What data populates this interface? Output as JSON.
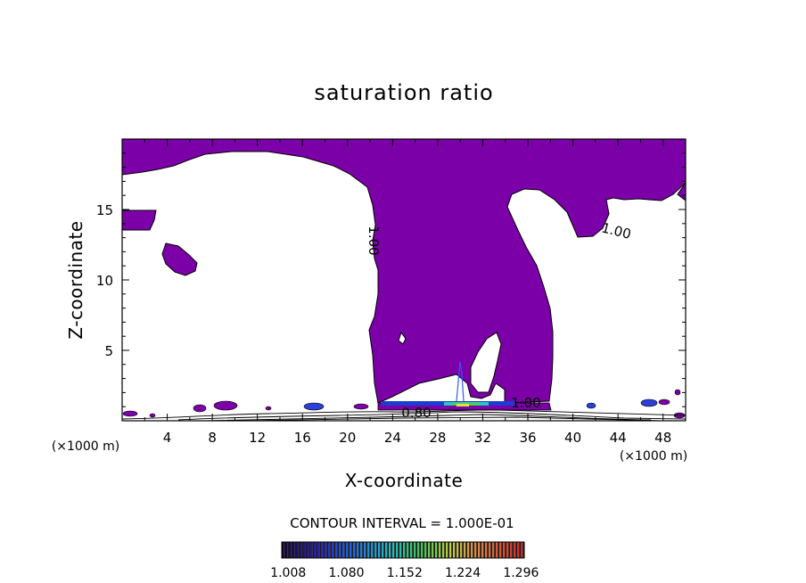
{
  "chart_data": {
    "type": "contour",
    "title": "saturation ratio",
    "xlabel": "X-coordinate",
    "ylabel": "Z-coordinate",
    "x_unit": "(×1000 m)",
    "y_unit": "(×1000 m)",
    "xlim": [
      0,
      50
    ],
    "ylim": [
      0,
      20
    ],
    "x_ticks": [
      4,
      8,
      12,
      16,
      20,
      24,
      28,
      32,
      36,
      40,
      44,
      48
    ],
    "y_ticks": [
      5,
      10,
      15
    ],
    "contour_labels": [
      {
        "text": "1.00",
        "x": 22.5,
        "y": 12.8,
        "rotate": 90
      },
      {
        "text": "1.00",
        "x": 44.4,
        "y": 13.0,
        "rotate": 15
      },
      {
        "text": "1.00",
        "x": 35.2,
        "y": 1.4,
        "rotate": 0
      },
      {
        "text": "0.80",
        "x": 26.0,
        "y": 0.75,
        "rotate": 0
      }
    ],
    "contour_interval_text": "CONTOUR INTERVAL = 1.000E-01",
    "colorbar": {
      "ticks": [
        1.008,
        1.08,
        1.152,
        1.224,
        1.296
      ],
      "tick_labels": [
        "1.008",
        "1.080",
        "1.152",
        "1.224",
        "1.296"
      ],
      "range": [
        1.0,
        1.3
      ]
    },
    "colors": {
      "supersaturated_fill": "#7b00a8",
      "outline": "#000000",
      "background": "#ffffff"
    }
  }
}
